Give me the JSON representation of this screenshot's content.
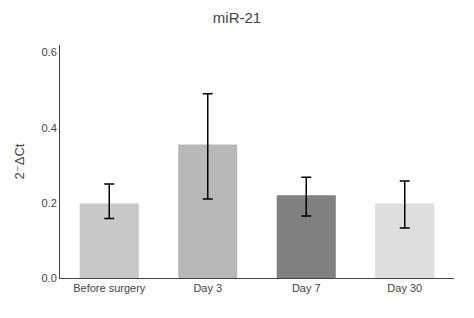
{
  "chart_data": {
    "type": "bar",
    "title": "miR-21",
    "categories": [
      "Before surgery",
      "Day 3",
      "Day 7",
      "Day 30"
    ],
    "values": [
      0.198,
      0.355,
      0.22,
      0.198
    ],
    "errors_upper": [
      0.052,
      0.135,
      0.048,
      0.06
    ],
    "errors_lower": [
      0.04,
      0.145,
      0.055,
      0.065
    ],
    "colors": [
      "#c8c8c8",
      "#b8b8b8",
      "#808080",
      "#dedede"
    ],
    "ylabel": "2⁻ΔCt",
    "ylim": [
      0.0,
      0.62
    ],
    "yticks": [
      {
        "value": 0,
        "label": "0.0"
      },
      0.2,
      0.4,
      0.6
    ],
    "grid": false
  }
}
